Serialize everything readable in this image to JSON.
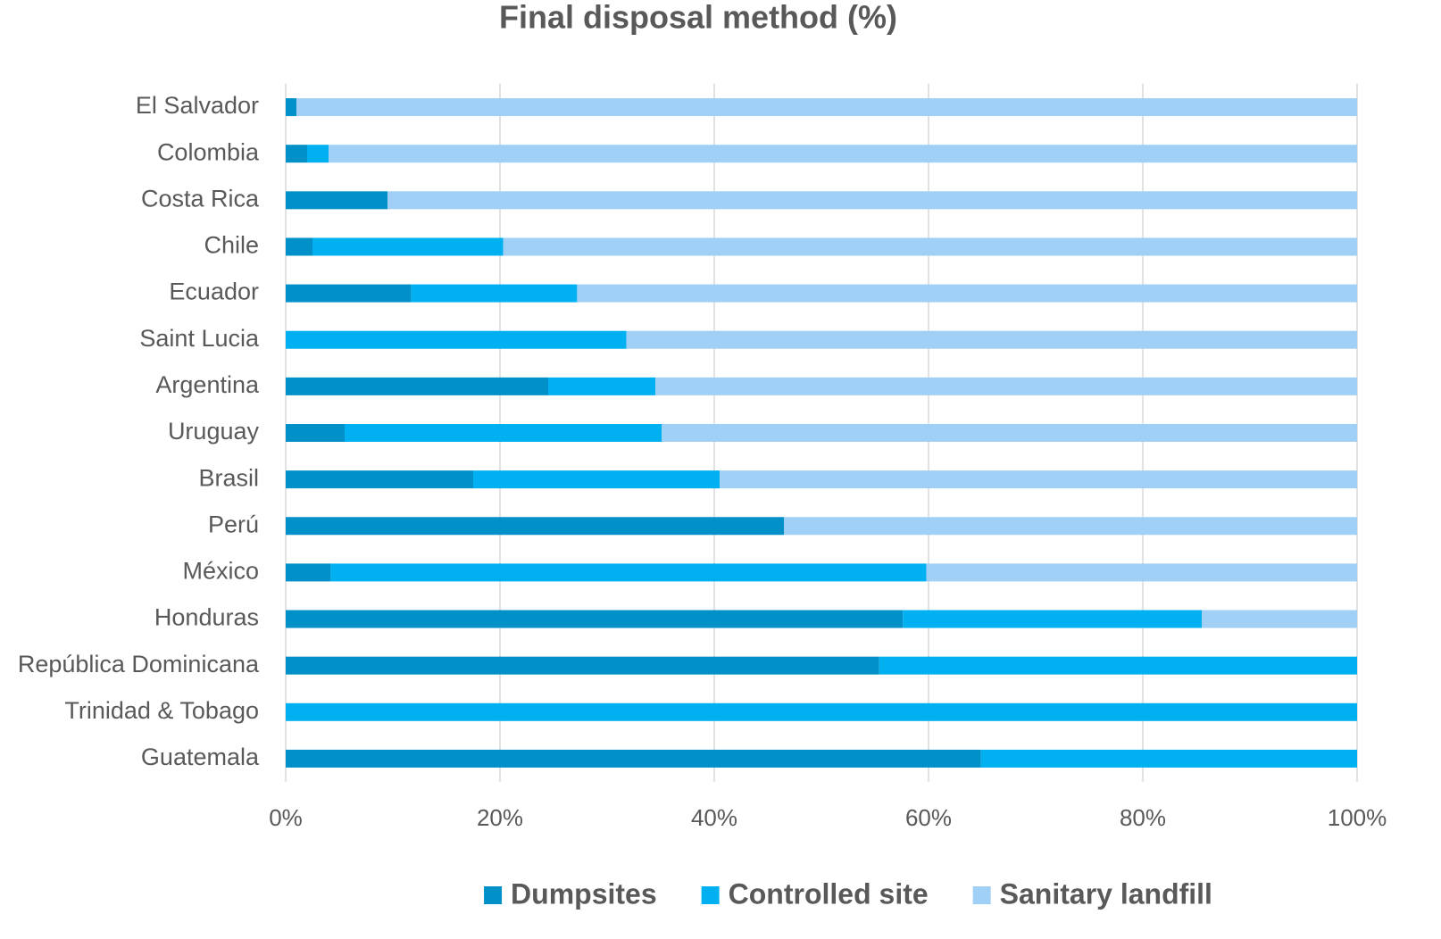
{
  "chart_data": {
    "type": "stacked_barh",
    "title": "Final disposal method (%)",
    "categories": [
      "El Salvador",
      "Colombia",
      "Costa Rica",
      "Chile",
      "Ecuador",
      "Saint Lucia",
      "Argentina",
      "Uruguay",
      "Brasil",
      "Perú",
      "México",
      "Honduras",
      "República Dominicana",
      "Trinidad & Tobago",
      "Guatemala"
    ],
    "series": [
      {
        "name": "Dumpsites",
        "color": "#0190c8",
        "values": [
          1,
          2,
          9.5,
          2.5,
          11.7,
          0,
          24.5,
          5.5,
          17.5,
          46.5,
          4.2,
          57.6,
          55.4,
          0,
          64.9
        ]
      },
      {
        "name": "Controlled site",
        "color": "#00b0f0",
        "values": [
          0,
          2,
          0,
          17.8,
          15.5,
          31.8,
          10,
          29.6,
          23,
          0,
          55.6,
          27.9,
          44.6,
          100,
          35.1
        ]
      },
      {
        "name": "Sanitary landfill",
        "color": "#a0d0f5",
        "values": [
          99,
          96,
          90.5,
          79.7,
          72.8,
          68.2,
          65.5,
          64.9,
          59.5,
          53.5,
          40.2,
          14.5,
          0,
          0,
          0
        ]
      }
    ],
    "xlim": [
      0,
      100
    ],
    "xticks": [
      {
        "value": 0,
        "label": "0%"
      },
      {
        "value": 20,
        "label": "20%"
      },
      {
        "value": 40,
        "label": "40%"
      },
      {
        "value": 60,
        "label": "60%"
      },
      {
        "value": 80,
        "label": "80%"
      },
      {
        "value": 100,
        "label": "100%"
      }
    ],
    "grid": true,
    "legend": "bottom"
  }
}
